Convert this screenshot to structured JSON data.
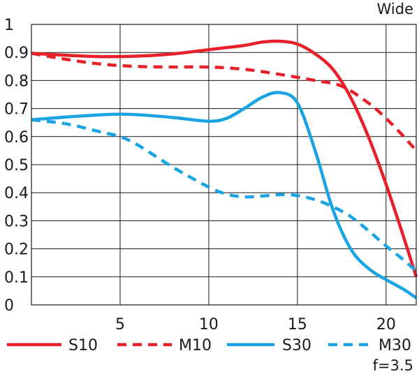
{
  "chart_data": {
    "type": "line",
    "title": "Wide",
    "annotation": "f=3.5",
    "xlabel": "",
    "ylabel": "",
    "xlim": [
      0,
      21.7
    ],
    "ylim": [
      0,
      1
    ],
    "grid": true,
    "legend_position": "bottom",
    "x_ticks": [
      5,
      10,
      15,
      20
    ],
    "x_tick_labels": [
      "5",
      "10",
      "15",
      "20"
    ],
    "y_ticks": [
      0,
      0.1,
      0.2,
      0.3,
      0.4,
      0.5,
      0.6,
      0.7,
      0.8,
      0.9,
      1
    ],
    "y_tick_labels": [
      "0",
      "0.1",
      "0.2",
      "0.3",
      "0.4",
      "0.5",
      "0.6",
      "0.7",
      "0.8",
      "0.9",
      "1"
    ],
    "series": [
      {
        "name": "S10",
        "color": "#e8202a",
        "dash": "solid",
        "x": [
          0,
          2,
          4,
          6,
          8,
          10,
          12,
          13,
          14,
          15,
          16,
          17,
          18,
          19,
          20,
          21,
          21.7
        ],
        "y": [
          0.897,
          0.89,
          0.885,
          0.887,
          0.895,
          0.91,
          0.925,
          0.937,
          0.94,
          0.93,
          0.895,
          0.84,
          0.74,
          0.6,
          0.43,
          0.24,
          0.1
        ]
      },
      {
        "name": "M10",
        "color": "#e8202a",
        "dash": "dashed",
        "x": [
          0,
          2,
          4,
          6,
          8,
          10,
          12,
          14,
          16,
          17.5,
          19,
          20,
          21,
          21.7
        ],
        "y": [
          0.897,
          0.875,
          0.858,
          0.85,
          0.848,
          0.848,
          0.84,
          0.822,
          0.8,
          0.78,
          0.72,
          0.665,
          0.6,
          0.55
        ]
      },
      {
        "name": "S30",
        "color": "#1aa4e4",
        "dash": "solid",
        "x": [
          0,
          2,
          4,
          5,
          6,
          8,
          10,
          11,
          12,
          13,
          14,
          15,
          16,
          17,
          18,
          19,
          20,
          21,
          21.7
        ],
        "y": [
          0.66,
          0.67,
          0.678,
          0.68,
          0.678,
          0.668,
          0.655,
          0.665,
          0.7,
          0.74,
          0.757,
          0.72,
          0.55,
          0.34,
          0.2,
          0.13,
          0.09,
          0.055,
          0.025
        ]
      },
      {
        "name": "M30",
        "color": "#1aa4e4",
        "dash": "dashed",
        "x": [
          0,
          2,
          4,
          5,
          6,
          8,
          10,
          11,
          12,
          13,
          14,
          15,
          16,
          17,
          18,
          19,
          20,
          21,
          21.7
        ],
        "y": [
          0.66,
          0.645,
          0.615,
          0.6,
          0.57,
          0.49,
          0.42,
          0.395,
          0.385,
          0.388,
          0.393,
          0.39,
          0.375,
          0.35,
          0.315,
          0.265,
          0.21,
          0.16,
          0.12
        ]
      }
    ]
  }
}
